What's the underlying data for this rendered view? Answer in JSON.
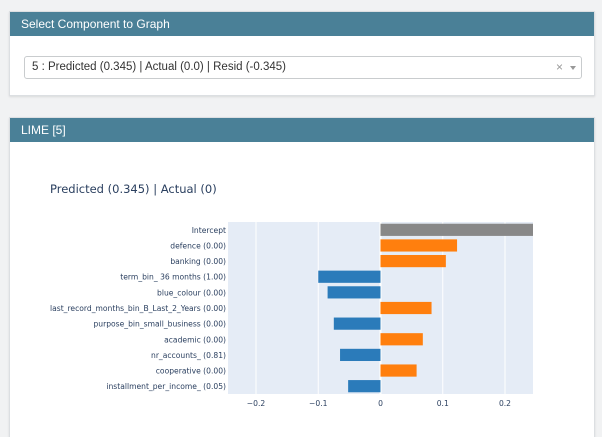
{
  "select_panel": {
    "title": "Select Component to Graph",
    "selected_value": "5 : Predicted (0.345) | Actual (0.0) | Resid (-0.345)",
    "clear_glyph": "×"
  },
  "lime_panel": {
    "title": "LIME [5]",
    "plot_title": "Predicted (0.345) | Actual (0)"
  },
  "colors": {
    "header": "#4a8097",
    "negative": "#2b7bba",
    "positive": "#ff7f0e",
    "intercept": "#888888",
    "plot_bg": "#e5ecf6"
  },
  "chart_data": {
    "type": "bar",
    "orientation": "horizontal",
    "categories": [
      "Intercept",
      "defence (0.00)",
      "banking (0.00)",
      "term_bin_ 36 months (1.00)",
      "blue_colour (0.00)",
      "last_record_months_bin_B_Last_2_Years (0.00)",
      "purpose_bin_small_business (0.00)",
      "academic (0.00)",
      "nr_accounts_ (0.81)",
      "cooperative (0.00)",
      "installment_per_income_ (0.05)"
    ],
    "values": [
      0.245,
      0.123,
      0.105,
      -0.1,
      -0.085,
      0.082,
      -0.075,
      0.068,
      -0.065,
      0.058,
      -0.052
    ],
    "xlim": [
      -0.245,
      0.245
    ],
    "xticks": [
      -0.2,
      -0.1,
      0,
      0.1,
      0.2
    ],
    "xtick_labels": [
      "−0.2",
      "−0.1",
      "0",
      "0.1",
      "0.2"
    ],
    "grid": true
  }
}
